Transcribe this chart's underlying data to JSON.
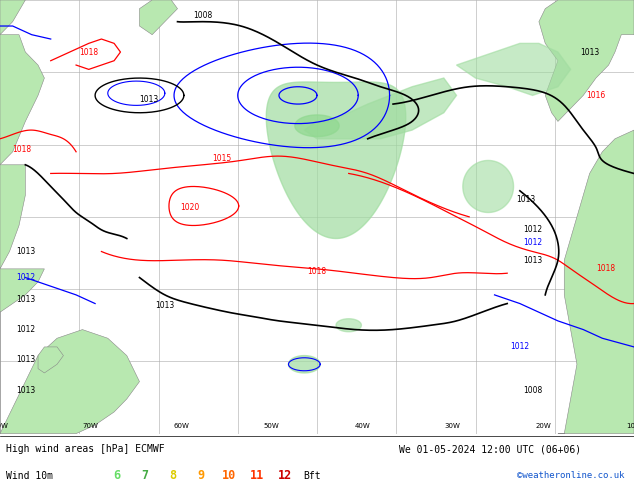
{
  "title_line1": "High wind areas [hPa] ECMWF",
  "title_line2": "Wind 10m",
  "date_str": "We 01-05-2024 12:00 UTC (06+06)",
  "copyright": "©weatheronline.co.uk",
  "bft_colors": [
    "#66dd66",
    "#44aa44",
    "#ddcc00",
    "#ff9900",
    "#ff6600",
    "#ff3300",
    "#cc0000"
  ],
  "bft_nums": [
    "6",
    "7",
    "8",
    "9",
    "10",
    "11",
    "12"
  ],
  "ocean_color": "#d8d8d8",
  "land_color": "#b8e8b0",
  "land_edge": "#888888",
  "grid_color": "#aaaaaa",
  "bg_color": "#ffffff",
  "figsize": [
    6.34,
    4.9
  ],
  "dpi": 100
}
